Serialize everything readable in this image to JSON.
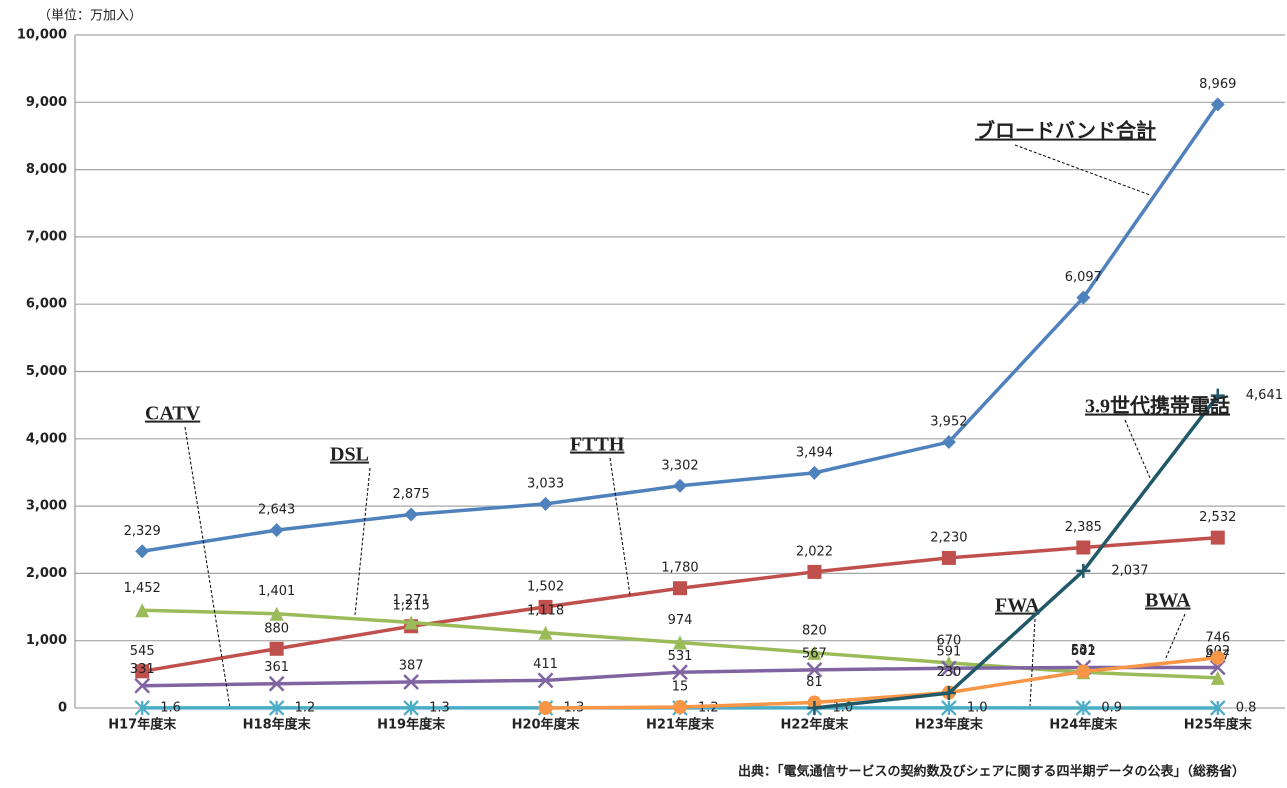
{
  "chart_data": {
    "type": "line",
    "unit_label": "（単位：万加入）",
    "source": "出典：「電気通信サービスの契約数及びシェアに関する四半期データの公表」（総務省）",
    "categories": [
      "H17年度末",
      "H18年度末",
      "H19年度末",
      "H20年度末",
      "H21年度末",
      "H22年度末",
      "H23年度末",
      "H24年度末",
      "H25年度末"
    ],
    "ylim": [
      0,
      10000
    ],
    "yticks": [
      0,
      {
        "value": 1000,
        "label": "1,000"
      },
      {
        "value": 2000,
        "label": "2,000"
      },
      {
        "value": 3000,
        "label": "3,000"
      },
      {
        "value": 4000,
        "label": "4,000"
      },
      {
        "value": 5000,
        "label": "5,000"
      },
      {
        "value": 6000,
        "label": "6,000"
      },
      {
        "value": 7000,
        "label": "7,000"
      },
      {
        "value": 8000,
        "label": "8,000"
      },
      {
        "value": 9000,
        "label": "9,000"
      },
      {
        "value": 10000,
        "label": "10,000"
      }
    ],
    "grid": true,
    "series": [
      {
        "name": "ブロードバンド合計",
        "color": "#4f81bd",
        "marker": "diamond",
        "values": [
          2329,
          2643,
          2875,
          3033,
          3302,
          3494,
          3952,
          6097,
          8969
        ],
        "value_labels": [
          "2,329",
          "2,643",
          "2,875",
          "3,033",
          "3,302",
          "3,494",
          "3,952",
          "6,097",
          "8,969"
        ]
      },
      {
        "name": "FTTH",
        "color": "#c0504d",
        "marker": "square",
        "values": [
          545,
          880,
          1215,
          1502,
          1780,
          2022,
          2230,
          2385,
          2532
        ],
        "value_labels": [
          "545",
          "880",
          "1,215",
          "1,502",
          "1,780",
          "2,022",
          "2,230",
          "2,385",
          "2,532"
        ]
      },
      {
        "name": "DSL",
        "color": "#9bbb59",
        "marker": "triangle",
        "values": [
          1452,
          1401,
          1271,
          1118,
          974,
          820,
          670,
          531,
          447
        ],
        "value_labels": [
          "1,452",
          "1,401",
          "1,271",
          "1,118",
          "974",
          "820",
          "670",
          "531",
          "447"
        ]
      },
      {
        "name": "CATV",
        "color": "#8064a2",
        "marker": "x",
        "values": [
          331,
          361,
          387,
          411,
          531,
          567,
          591,
          601,
          602
        ],
        "value_labels": [
          "331",
          "361",
          "387",
          "411",
          "531",
          "567",
          "591",
          "601",
          "602"
        ]
      },
      {
        "name": "FWA",
        "color": "#4bacc6",
        "marker": "star",
        "values": [
          1.6,
          1.2,
          1.3,
          1.3,
          1.2,
          1.0,
          1.0,
          0.9,
          0.8
        ],
        "value_labels": [
          "1.6",
          "1.2",
          "1.3",
          "1.3",
          "1.2",
          "1.0",
          "1.0",
          "0.9",
          "0.8"
        ]
      },
      {
        "name": "BWA",
        "color": "#f79646",
        "marker": "circle",
        "values": [
          null,
          null,
          null,
          0,
          15,
          81,
          230,
          542,
          746
        ],
        "value_labels": [
          null,
          null,
          null,
          null,
          "15",
          "81",
          "230",
          "542",
          "746"
        ]
      },
      {
        "name": "3.9世代携帯電話",
        "color": "#215968",
        "marker": "plus",
        "values": [
          null,
          null,
          null,
          null,
          null,
          0,
          222,
          2037,
          4641
        ],
        "value_labels": [
          null,
          null,
          null,
          null,
          null,
          null,
          null,
          "2,037",
          "4,641"
        ]
      }
    ]
  }
}
